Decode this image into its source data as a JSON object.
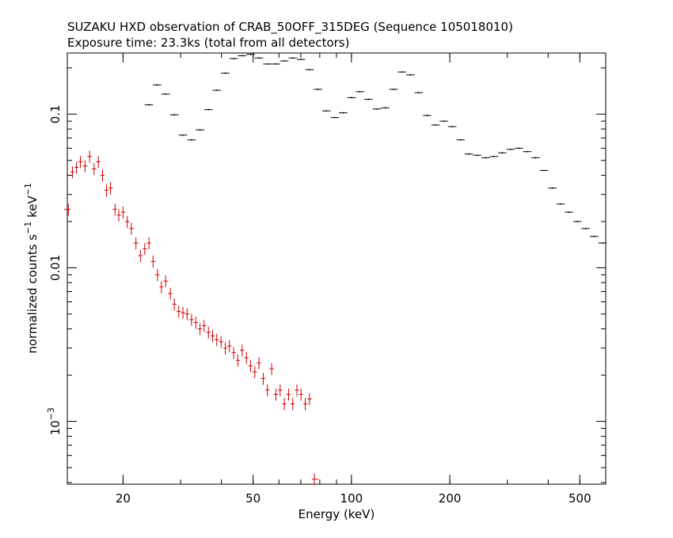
{
  "chart_data": {
    "type": "scatter",
    "title": "SUZAKU HXD observation of CRAB_50OFF_315DEG (Sequence 105018010)",
    "subtitle": "Exposure time: 23.3ks (total from all detectors)",
    "xlabel": "Energy (keV)",
    "ylabel": "normalized counts s-1 keV-1",
    "ylabel_parts": {
      "main": "normalized counts s",
      "exp1": "−1",
      "mid": " keV",
      "exp2": "−1"
    },
    "x_scale": "log",
    "y_scale": "log",
    "xlim": [
      13.5,
      600
    ],
    "ylim": [
      0.00039,
      0.25
    ],
    "x_ticks": [
      {
        "value": 20,
        "label": "20"
      },
      {
        "value": 50,
        "label": "50"
      },
      {
        "value": 100,
        "label": "100"
      },
      {
        "value": 200,
        "label": "200"
      },
      {
        "value": 500,
        "label": "500"
      }
    ],
    "y_ticks": [
      {
        "value": 0.1,
        "label": "0.1"
      },
      {
        "value": 0.01,
        "label": "0.01"
      },
      {
        "value": 0.001,
        "label": "10",
        "exp": "−3"
      }
    ],
    "grid": false,
    "legend": "none",
    "series": [
      {
        "color": "#000000",
        "points": [
          [
            24.0,
            0.115
          ],
          [
            25.4,
            0.155
          ],
          [
            27.0,
            0.135
          ],
          [
            28.7,
            0.099
          ],
          [
            30.5,
            0.073
          ],
          [
            32.4,
            0.068
          ],
          [
            34.4,
            0.079
          ],
          [
            36.5,
            0.107
          ],
          [
            38.7,
            0.143
          ],
          [
            41.1,
            0.185
          ],
          [
            43.6,
            0.23
          ],
          [
            46.3,
            0.24
          ],
          [
            49.1,
            0.245
          ],
          [
            52.1,
            0.232
          ],
          [
            55.3,
            0.212
          ],
          [
            58.7,
            0.212
          ],
          [
            62.3,
            0.222
          ],
          [
            66.1,
            0.232
          ],
          [
            70.1,
            0.227
          ],
          [
            74.4,
            0.195
          ],
          [
            79.0,
            0.145
          ],
          [
            83.8,
            0.105
          ],
          [
            88.9,
            0.095
          ],
          [
            94.3,
            0.102
          ],
          [
            100.1,
            0.128
          ],
          [
            106.2,
            0.14
          ],
          [
            112.7,
            0.125
          ],
          [
            119.6,
            0.108
          ],
          [
            126.9,
            0.11
          ],
          [
            134.6,
            0.145
          ],
          [
            142.8,
            0.188
          ],
          [
            151.5,
            0.18
          ],
          [
            160.7,
            0.138
          ],
          [
            170.5,
            0.098
          ],
          [
            180.8,
            0.085
          ],
          [
            191.8,
            0.09
          ],
          [
            203.4,
            0.083
          ],
          [
            215.7,
            0.068
          ],
          [
            228.8,
            0.055
          ],
          [
            242.6,
            0.054
          ],
          [
            257.3,
            0.052
          ],
          [
            272.9,
            0.053
          ],
          [
            289.4,
            0.056
          ],
          [
            307.0,
            0.059
          ],
          [
            325.6,
            0.06
          ],
          [
            345.3,
            0.057
          ],
          [
            366.2,
            0.052
          ],
          [
            388.4,
            0.043
          ],
          [
            411.9,
            0.033
          ],
          [
            436.8,
            0.026
          ],
          [
            463.3,
            0.023
          ],
          [
            491.4,
            0.02
          ],
          [
            521.2,
            0.018
          ],
          [
            552.8,
            0.016
          ],
          [
            586.3,
            0.0145
          ]
        ]
      },
      {
        "color": "#cc0000",
        "points": [
          [
            13.6,
            0.024
          ],
          [
            14.0,
            0.042
          ],
          [
            14.4,
            0.045
          ],
          [
            14.8,
            0.049
          ],
          [
            15.3,
            0.046
          ],
          [
            15.8,
            0.053
          ],
          [
            16.3,
            0.044
          ],
          [
            16.8,
            0.049
          ],
          [
            17.3,
            0.04
          ],
          [
            17.8,
            0.032
          ],
          [
            18.3,
            0.033
          ],
          [
            18.9,
            0.024
          ],
          [
            19.4,
            0.022
          ],
          [
            20.0,
            0.023
          ],
          [
            20.6,
            0.02
          ],
          [
            21.2,
            0.018
          ],
          [
            21.9,
            0.0145
          ],
          [
            22.6,
            0.012
          ],
          [
            23.3,
            0.0133
          ],
          [
            24.0,
            0.0145
          ],
          [
            24.7,
            0.011
          ],
          [
            25.5,
            0.009
          ],
          [
            26.2,
            0.0075
          ],
          [
            27.0,
            0.0082
          ],
          [
            27.9,
            0.0068
          ],
          [
            28.7,
            0.0058
          ],
          [
            29.6,
            0.0052
          ],
          [
            30.5,
            0.0051
          ],
          [
            31.4,
            0.005
          ],
          [
            32.4,
            0.0046
          ],
          [
            33.4,
            0.0044
          ],
          [
            34.4,
            0.004
          ],
          [
            35.4,
            0.0042
          ],
          [
            36.5,
            0.0038
          ],
          [
            37.6,
            0.0036
          ],
          [
            38.7,
            0.0034
          ],
          [
            39.9,
            0.0033
          ],
          [
            41.1,
            0.003
          ],
          [
            42.3,
            0.0031
          ],
          [
            43.6,
            0.0028
          ],
          [
            44.9,
            0.0025
          ],
          [
            46.3,
            0.0029
          ],
          [
            47.7,
            0.0026
          ],
          [
            49.1,
            0.0023
          ],
          [
            50.6,
            0.0021
          ],
          [
            52.1,
            0.0024
          ],
          [
            53.7,
            0.0019
          ],
          [
            55.3,
            0.0016
          ],
          [
            57.0,
            0.0022
          ],
          [
            58.7,
            0.0015
          ],
          [
            60.5,
            0.0016
          ],
          [
            62.3,
            0.0013
          ],
          [
            64.2,
            0.0015
          ],
          [
            66.1,
            0.0013
          ],
          [
            68.1,
            0.0016
          ],
          [
            70.1,
            0.0015
          ],
          [
            72.2,
            0.0013
          ],
          [
            74.4,
            0.0014
          ],
          [
            77.0,
            0.00042
          ]
        ]
      }
    ]
  }
}
